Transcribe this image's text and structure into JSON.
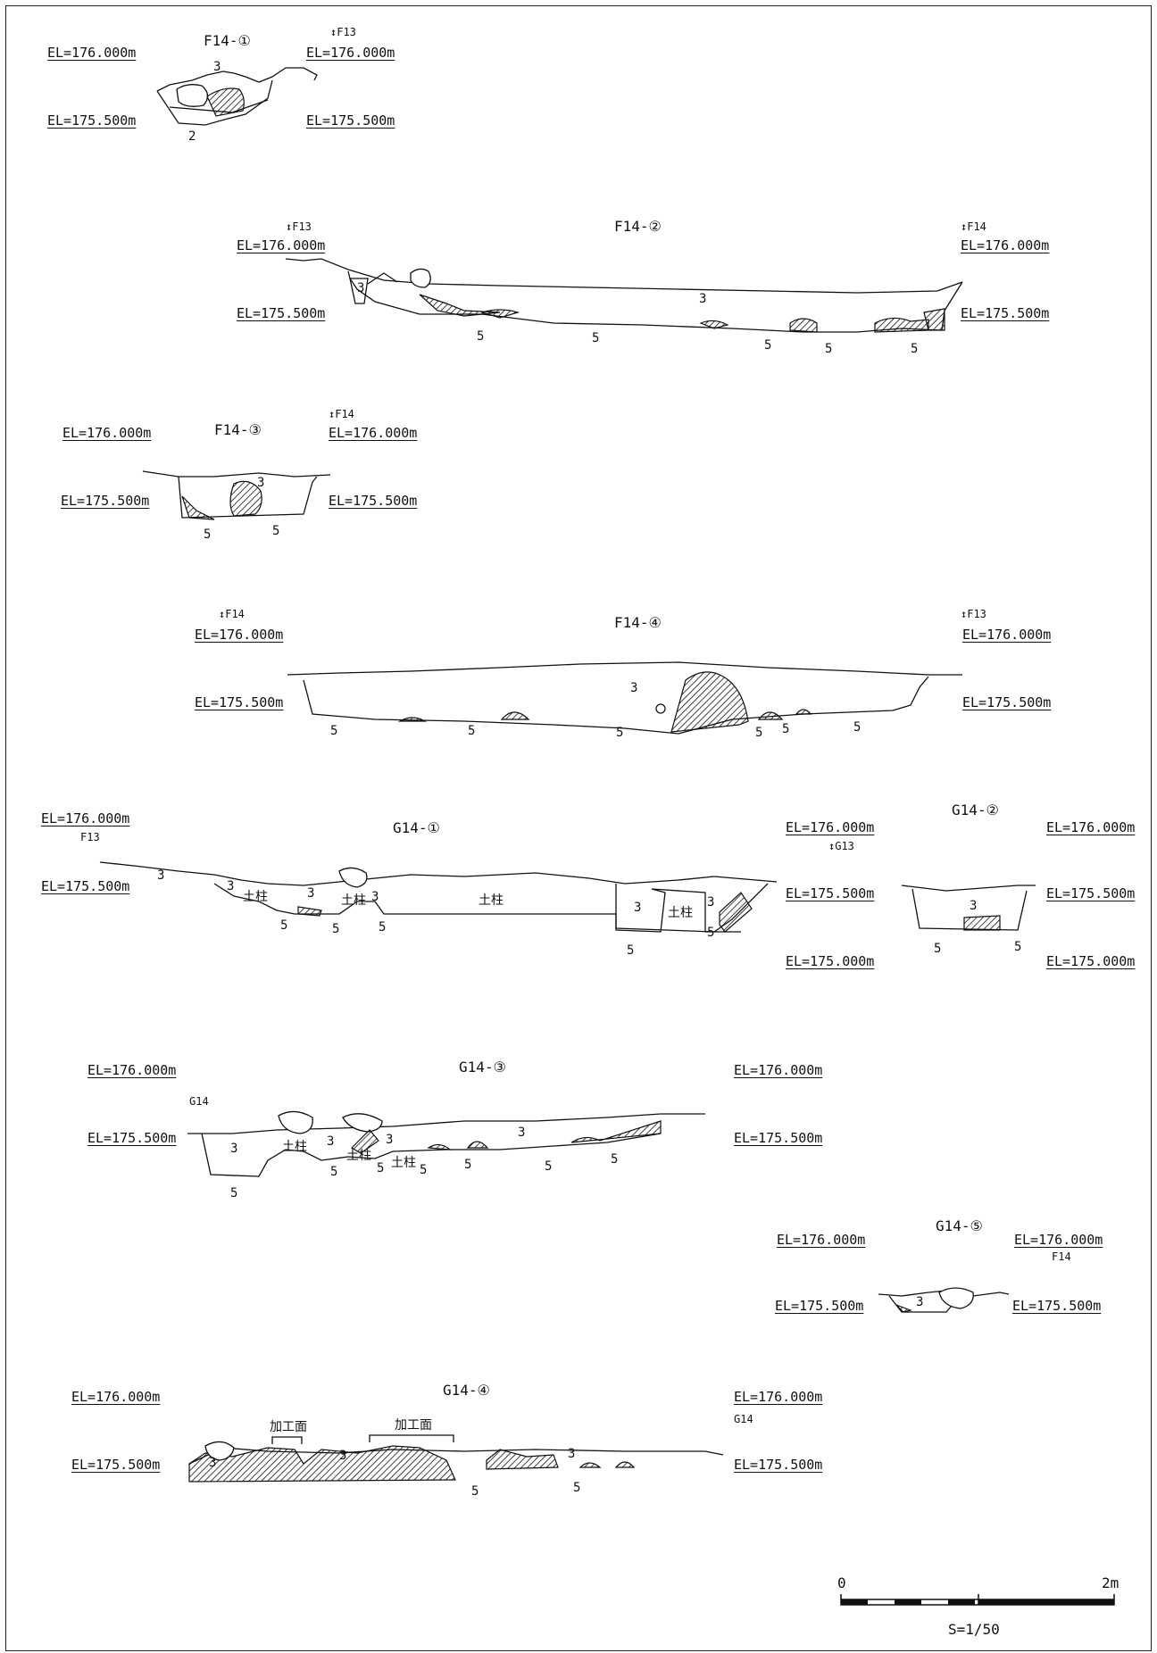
{
  "sections": [
    {
      "id": "f14-1",
      "title": "F14-①"
    },
    {
      "id": "f14-2",
      "title": "F14-②"
    },
    {
      "id": "f14-3",
      "title": "F14-③"
    },
    {
      "id": "f14-4",
      "title": "F14-④"
    },
    {
      "id": "g14-1",
      "title": "G14-①"
    },
    {
      "id": "g14-2",
      "title": "G14-②"
    },
    {
      "id": "g14-3",
      "title": "G14-③"
    },
    {
      "id": "g14-4",
      "title": "G14-④"
    },
    {
      "id": "g14-5",
      "title": "G14-⑤"
    }
  ],
  "elevations": {
    "el176": "EL=176.000m",
    "el1755": "EL=175.500m",
    "el175": "EL=175.000m"
  },
  "grid_markers": {
    "f13": "F13",
    "f14": "F14",
    "g13": "G13",
    "g14": "G14"
  },
  "layer_labels": {
    "l2": "2",
    "l3": "3",
    "l5": "5"
  },
  "feature_labels": {
    "pillar": "土柱",
    "worked_surface": "加工面"
  },
  "scale_bar": {
    "start": "0",
    "end": "2m",
    "ratio": "S=1/50"
  }
}
